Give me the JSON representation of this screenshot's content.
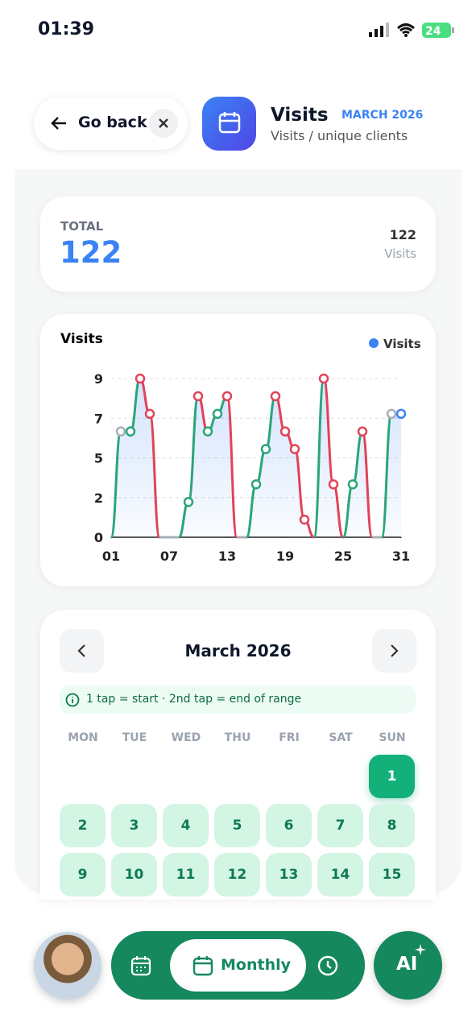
{
  "status": {
    "time": "01:39",
    "battery": "24"
  },
  "header": {
    "back_label": "Go back",
    "title": "Visits",
    "period": "MARCH 2026",
    "subtitle": "Visits / unique clients"
  },
  "total_card": {
    "label": "TOTAL",
    "value": 122,
    "side_value": 122,
    "side_label": "Visits"
  },
  "chart_data": {
    "type": "line",
    "title": "Visits",
    "x": [
      1,
      2,
      3,
      4,
      5,
      6,
      7,
      8,
      9,
      10,
      11,
      12,
      13,
      14,
      15,
      16,
      17,
      18,
      19,
      20,
      21,
      22,
      23,
      24,
      25,
      26,
      27,
      28,
      29,
      30,
      31
    ],
    "xlim": [
      1,
      31
    ],
    "xticks": [
      {
        "value": 1,
        "label": "01"
      },
      {
        "value": 7,
        "label": "07"
      },
      13,
      19,
      25,
      31
    ],
    "ylim": [
      0,
      9
    ],
    "yticks": [
      0,
      {
        "value": 2.25,
        "label": "2"
      },
      {
        "value": 4.5,
        "label": "5"
      },
      {
        "value": 6.75,
        "label": "7"
      },
      9
    ],
    "grid": true,
    "legend": "top-right",
    "up_color": "#2aa57a",
    "down_color": "#e0435a",
    "flat_color": "#a7aeb9",
    "series": [
      {
        "name": "Visits",
        "color": "#3b82f6",
        "values": [
          0,
          6,
          6,
          9,
          7,
          0,
          0,
          0,
          2,
          8,
          6,
          7,
          8,
          0,
          0,
          3,
          5,
          8,
          6,
          5,
          1,
          0,
          9,
          3,
          0,
          3,
          6,
          0,
          0,
          7,
          7
        ]
      }
    ]
  },
  "calendar": {
    "title": "March 2026",
    "hint": "1 tap = start · 2nd tap = end of range",
    "weekdays": [
      "MON",
      "TUE",
      "WED",
      "THU",
      "FRI",
      "SAT",
      "SUN"
    ],
    "days": [
      1,
      2,
      3,
      4,
      5,
      6,
      7,
      8,
      9,
      10,
      11,
      12,
      13,
      14,
      15
    ]
  },
  "nav": {
    "tab_label": "Monthly",
    "ai_label": "AI"
  }
}
